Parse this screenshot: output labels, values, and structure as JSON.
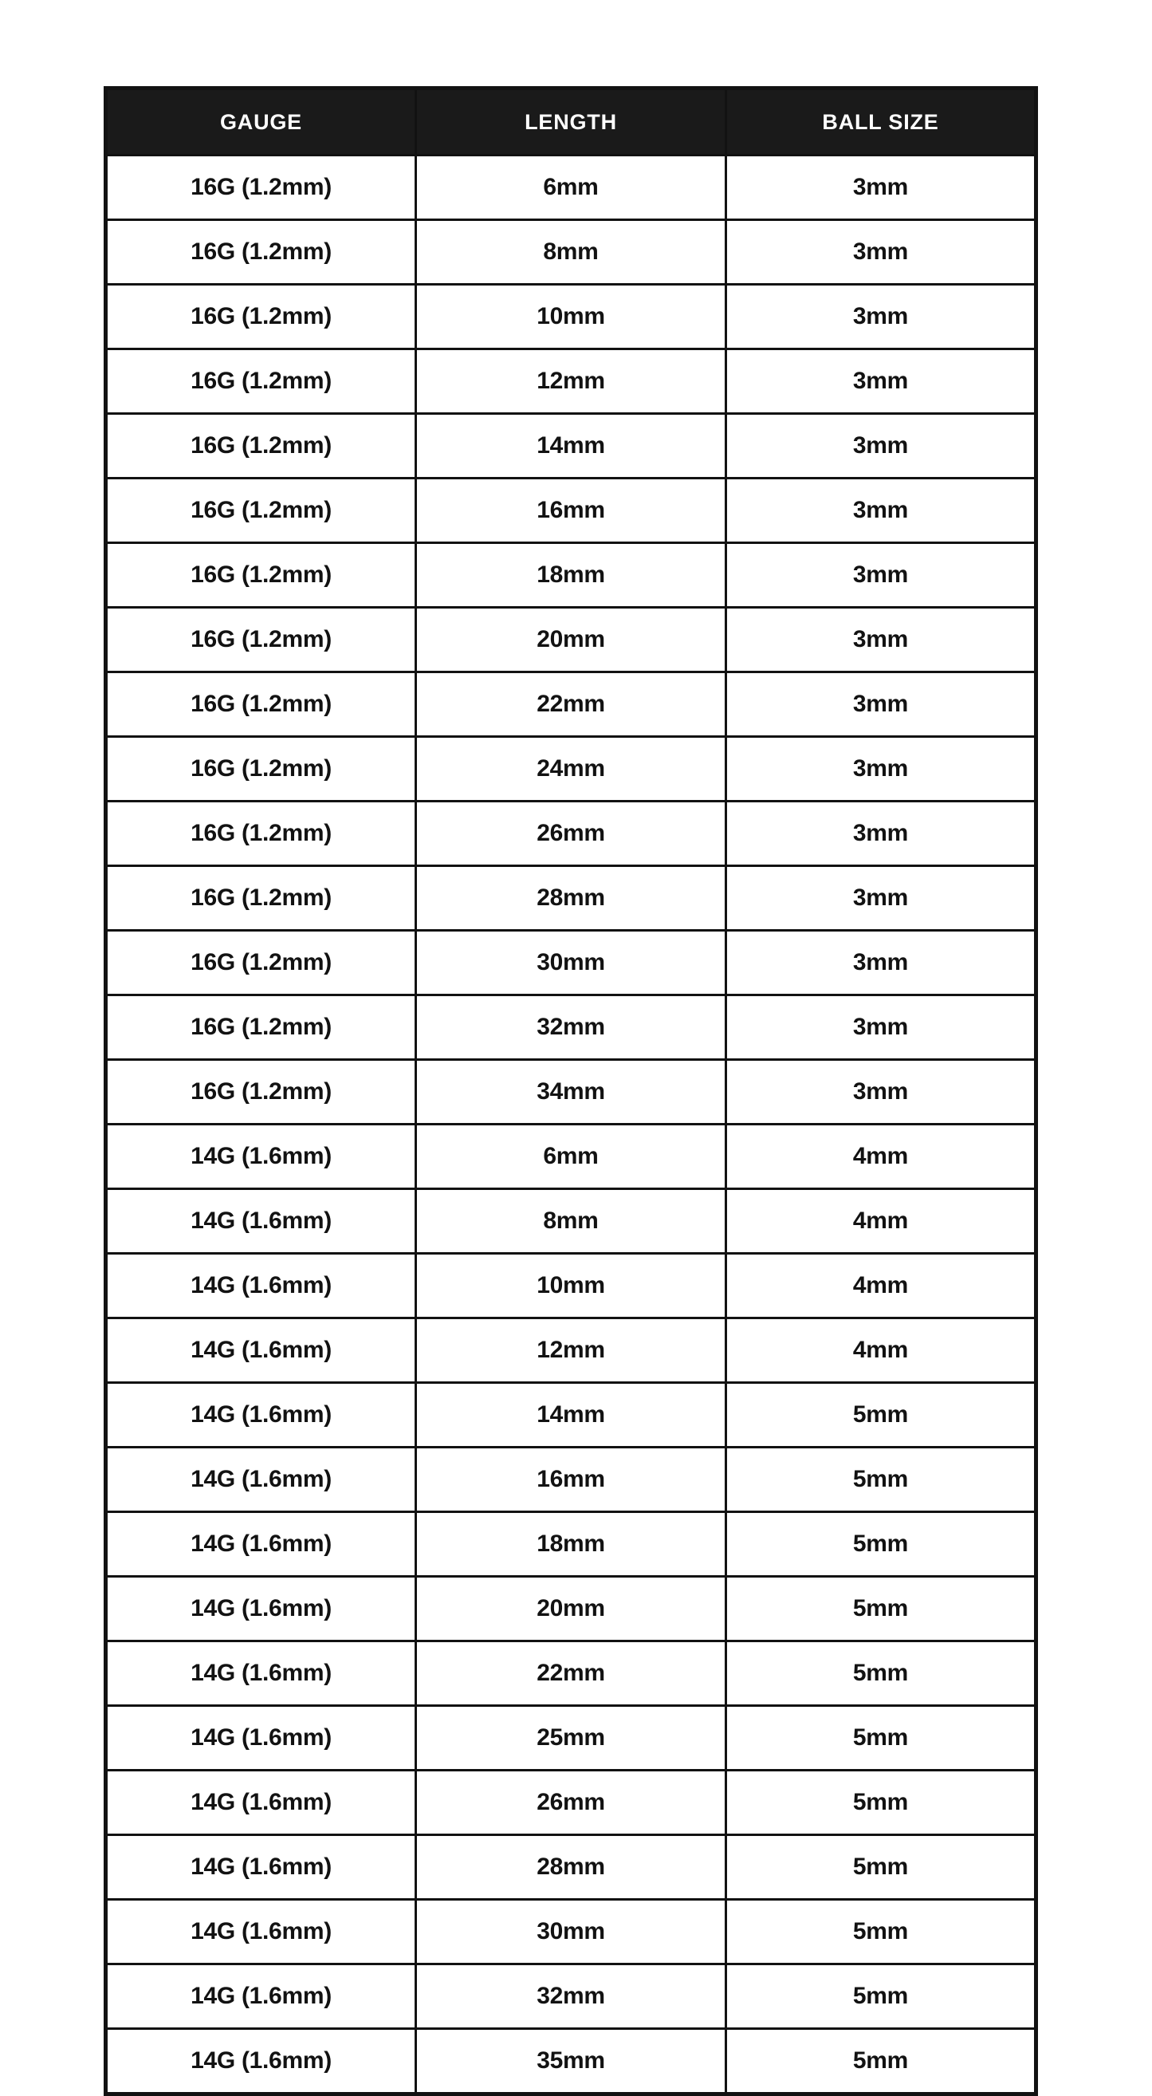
{
  "colors": {
    "page_background": "#ffffff",
    "header_background": "#1a1a1a",
    "header_text": "#ffffff",
    "cell_text": "#121212",
    "border": "#121212"
  },
  "table": {
    "headers": [
      "GAUGE",
      "LENGTH",
      "BALL SIZE"
    ],
    "rows": [
      [
        "16G (1.2mm)",
        "6mm",
        "3mm"
      ],
      [
        "16G (1.2mm)",
        "8mm",
        "3mm"
      ],
      [
        "16G (1.2mm)",
        "10mm",
        "3mm"
      ],
      [
        "16G (1.2mm)",
        "12mm",
        "3mm"
      ],
      [
        "16G (1.2mm)",
        "14mm",
        "3mm"
      ],
      [
        "16G (1.2mm)",
        "16mm",
        "3mm"
      ],
      [
        "16G (1.2mm)",
        "18mm",
        "3mm"
      ],
      [
        "16G (1.2mm)",
        "20mm",
        "3mm"
      ],
      [
        "16G (1.2mm)",
        "22mm",
        "3mm"
      ],
      [
        "16G (1.2mm)",
        "24mm",
        "3mm"
      ],
      [
        "16G (1.2mm)",
        "26mm",
        "3mm"
      ],
      [
        "16G (1.2mm)",
        "28mm",
        "3mm"
      ],
      [
        "16G (1.2mm)",
        "30mm",
        "3mm"
      ],
      [
        "16G (1.2mm)",
        "32mm",
        "3mm"
      ],
      [
        "16G (1.2mm)",
        "34mm",
        "3mm"
      ],
      [
        "14G (1.6mm)",
        "6mm",
        "4mm"
      ],
      [
        "14G (1.6mm)",
        "8mm",
        "4mm"
      ],
      [
        "14G (1.6mm)",
        "10mm",
        "4mm"
      ],
      [
        "14G (1.6mm)",
        "12mm",
        "4mm"
      ],
      [
        "14G (1.6mm)",
        "14mm",
        "5mm"
      ],
      [
        "14G (1.6mm)",
        "16mm",
        "5mm"
      ],
      [
        "14G (1.6mm)",
        "18mm",
        "5mm"
      ],
      [
        "14G (1.6mm)",
        "20mm",
        "5mm"
      ],
      [
        "14G (1.6mm)",
        "22mm",
        "5mm"
      ],
      [
        "14G (1.6mm)",
        "25mm",
        "5mm"
      ],
      [
        "14G (1.6mm)",
        "26mm",
        "5mm"
      ],
      [
        "14G (1.6mm)",
        "28mm",
        "5mm"
      ],
      [
        "14G (1.6mm)",
        "30mm",
        "5mm"
      ],
      [
        "14G (1.6mm)",
        "32mm",
        "5mm"
      ],
      [
        "14G (1.6mm)",
        "35mm",
        "5mm"
      ]
    ]
  }
}
